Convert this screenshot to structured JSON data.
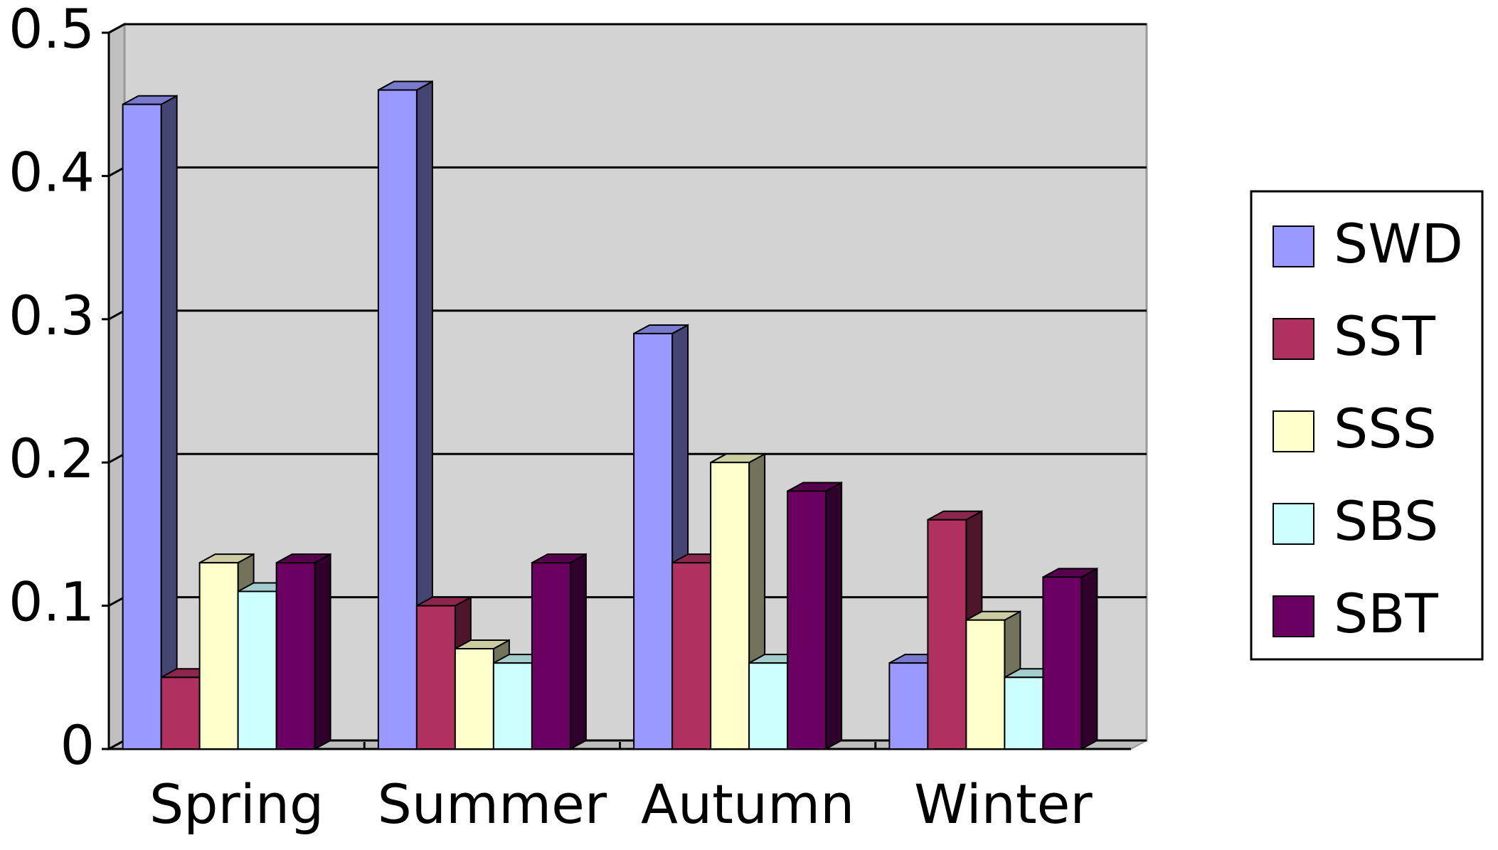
{
  "chart_data": {
    "type": "bar3d",
    "categories": [
      "Spring",
      "Summer",
      "Autumn",
      "Winter"
    ],
    "series": [
      {
        "name": "SWD",
        "color": "#9999ff",
        "values": [
          0.45,
          0.46,
          0.29,
          0.06
        ]
      },
      {
        "name": "SST",
        "color": "#b0305f",
        "values": [
          0.05,
          0.1,
          0.13,
          0.16
        ]
      },
      {
        "name": "SSS",
        "color": "#ffffcc",
        "values": [
          0.13,
          0.07,
          0.2,
          0.09
        ]
      },
      {
        "name": "SBS",
        "color": "#ccffff",
        "values": [
          0.11,
          0.06,
          0.06,
          0.05
        ]
      },
      {
        "name": "SBT",
        "color": "#6b0062",
        "values": [
          0.13,
          0.13,
          0.18,
          0.12
        ]
      }
    ],
    "ylim": [
      0,
      0.5
    ],
    "yticks": [
      0,
      0.1,
      0.2,
      0.3,
      0.4,
      0.5
    ],
    "grid": true,
    "legend": "right"
  }
}
